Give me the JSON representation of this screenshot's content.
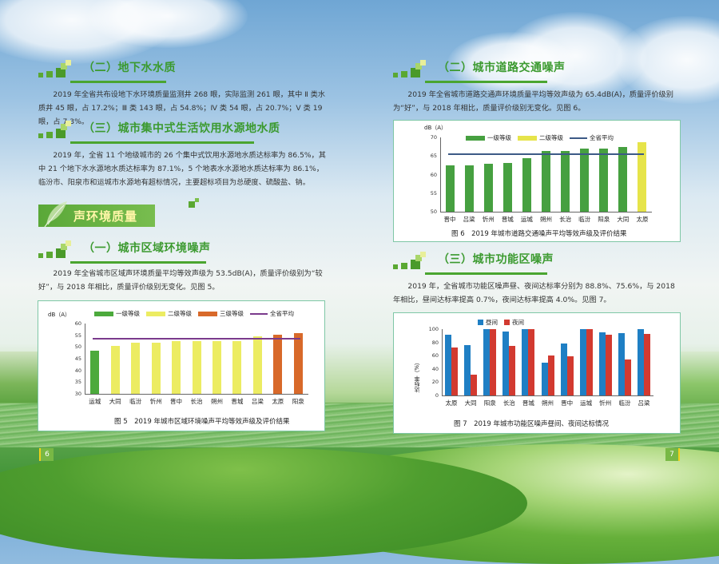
{
  "left_page": {
    "section_groundwater": {
      "title": "（二）地下水水质",
      "text": "2019 年全省共布设地下水环境质量监测井 268 眼，实际监测 261 眼，其中 Ⅱ 类水质井 45 眼，占 17.2%；Ⅲ 类 143 眼，占 54.8%；Ⅳ 类 54 眼，占 20.7%；Ⅴ 类 19 眼，占 7.3%。"
    },
    "section_drinking_water": {
      "title": "（三）城市集中式生活饮用水源地水质",
      "text": "2019 年，全省 11 个地级城市的 26 个集中式饮用水源地水质达标率为 86.5%，其中 21 个地下水水源地水质达标率为 87.1%，5 个地表水水源地水质达标率为 86.1%，临汾市、阳泉市和运城市水源地有超标情况，主要超标项目为总硬度、硫酸盐、钠。"
    },
    "chapter_banner": {
      "title": "声环境质量"
    },
    "section_urban_noise": {
      "title": "（一）城市区域环境噪声",
      "text": "2019 年全省城市区域声环境质量平均等效声级为 53.5dB(A)，质量评价级别为“较好”，与 2018 年相比，质量评价级别无变化。见图 5。"
    },
    "page_number": "6"
  },
  "right_page": {
    "section_road_noise": {
      "title": "（二）城市道路交通噪声",
      "text": "2019 年全省城市道路交通声环境质量平均等效声级为 65.4dB(A)，质量评价级别为“好”，与 2018 年相比，质量评价级别无变化。见图 6。"
    },
    "section_functional_noise": {
      "title": "（三）城市功能区噪声",
      "text": "2019 年，全省城市功能区噪声昼、夜间达标率分别为 88.8%、75.6%，与 2018 年相比，昼间达标率提高 0.7%，夜间达标率提高 4.0%。见图 7。"
    },
    "page_number": "7"
  },
  "chart_data": [
    {
      "id": "fig5",
      "type": "bar",
      "title": "图 5　2019 年城市区域环境噪声平均等效声级及评价结果",
      "ylabel": "dB（A）",
      "xlabel": "",
      "ylim": [
        30,
        60
      ],
      "yticks": [
        30,
        35,
        40,
        45,
        50,
        55,
        60
      ],
      "categories": [
        "运城",
        "大同",
        "临汾",
        "忻州",
        "晋中",
        "长治",
        "朔州",
        "晋城",
        "吕梁",
        "太原",
        "阳泉"
      ],
      "values": [
        48.5,
        50.5,
        51.8,
        51.8,
        52.5,
        52.5,
        52.5,
        52.5,
        54.5,
        55.2,
        56.0
      ],
      "grades": [
        "一级等级",
        "二级等级",
        "二级等级",
        "二级等级",
        "二级等级",
        "二级等级",
        "二级等级",
        "二级等级",
        "二级等级",
        "三级等级",
        "三级等级"
      ],
      "legend": [
        {
          "label": "一级等级",
          "color": "#4caa3c",
          "kind": "bar"
        },
        {
          "label": "二级等级",
          "color": "#ecec62",
          "kind": "bar"
        },
        {
          "label": "三级等级",
          "color": "#d8692a",
          "kind": "bar"
        },
        {
          "label": "全省平均",
          "color": "#7a3a8c",
          "kind": "line"
        }
      ],
      "average": 53.5,
      "grid": false,
      "legend_position": "top"
    },
    {
      "id": "fig6",
      "type": "bar",
      "title": "图 6　2019 年城市道路交通噪声平均等效声级及评价结果",
      "ylabel": "dB（A）",
      "xlabel": "",
      "ylim": [
        50,
        70
      ],
      "yticks": [
        50,
        55,
        60,
        65,
        70
      ],
      "categories": [
        "晋中",
        "吕梁",
        "忻州",
        "晋城",
        "运城",
        "朔州",
        "长治",
        "临汾",
        "阳泉",
        "大同",
        "太原"
      ],
      "values": [
        62.4,
        62.5,
        62.8,
        63.2,
        64.5,
        66.3,
        66.4,
        66.9,
        67.0,
        67.4,
        68.7
      ],
      "grades": [
        "一级等级",
        "一级等级",
        "一级等级",
        "一级等级",
        "一级等级",
        "一级等级",
        "一级等级",
        "一级等级",
        "一级等级",
        "一级等级",
        "二级等级"
      ],
      "legend": [
        {
          "label": "一级等级",
          "color": "#46a040",
          "kind": "bar"
        },
        {
          "label": "二级等级",
          "color": "#e6e44a",
          "kind": "bar"
        },
        {
          "label": "全省平均",
          "color": "#3c5a86",
          "kind": "line"
        }
      ],
      "average": 65.4,
      "grid": false,
      "legend_position": "top"
    },
    {
      "id": "fig7",
      "type": "bar",
      "title": "图 7　2019 年城市功能区噪声昼间、夜间达标情况",
      "ylabel": "达标率（%）",
      "xlabel": "",
      "ylim": [
        0,
        100
      ],
      "yticks": [
        0,
        20,
        40,
        60,
        80,
        100
      ],
      "categories": [
        "太原",
        "大同",
        "阳泉",
        "长治",
        "晋城",
        "朔州",
        "晋中",
        "运城",
        "忻州",
        "临汾",
        "吕梁"
      ],
      "series": [
        {
          "name": "昼间",
          "color": "#1f7fc4",
          "values": [
            92,
            76,
            100,
            96,
            100,
            50,
            78,
            100,
            95,
            94,
            100
          ]
        },
        {
          "name": "夜间",
          "color": "#d23a30",
          "values": [
            72,
            31,
            100,
            75,
            100,
            60,
            59,
            100,
            91,
            54,
            93
          ]
        }
      ],
      "grid": false,
      "legend_position": "top"
    }
  ]
}
